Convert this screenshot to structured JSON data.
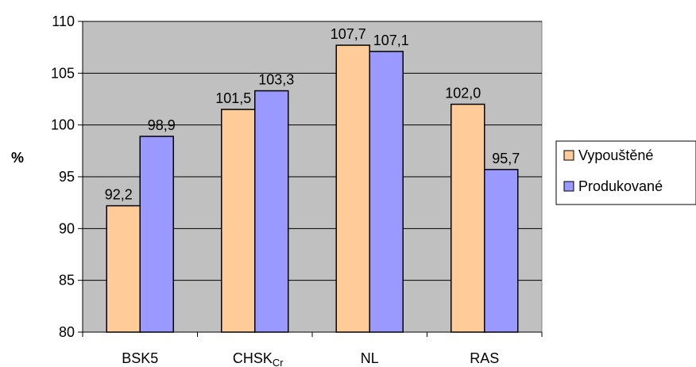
{
  "chart_data": {
    "type": "bar",
    "categories": [
      "BSK5",
      "CHSK",
      "NL",
      "RAS"
    ],
    "category_subscripts": [
      "",
      "Cr",
      "",
      ""
    ],
    "series": [
      {
        "name": "Vypouštěné",
        "values": [
          92.2,
          101.5,
          107.7,
          102.0
        ],
        "labels": [
          "92,2",
          "101,5",
          "107,7",
          "102,0"
        ],
        "color": "#ffcc99"
      },
      {
        "name": "Produkované",
        "values": [
          98.9,
          103.3,
          107.1,
          95.7
        ],
        "labels": [
          "98,9",
          "103,3",
          "107,1",
          "95,7"
        ],
        "color": "#9999ff"
      }
    ],
    "ylabel": "%",
    "ylim": [
      80,
      110
    ],
    "yticks": [
      80,
      85,
      90,
      95,
      100,
      105,
      110
    ],
    "plot_background": "#c0c0c0",
    "grid": true,
    "legend": "right"
  }
}
